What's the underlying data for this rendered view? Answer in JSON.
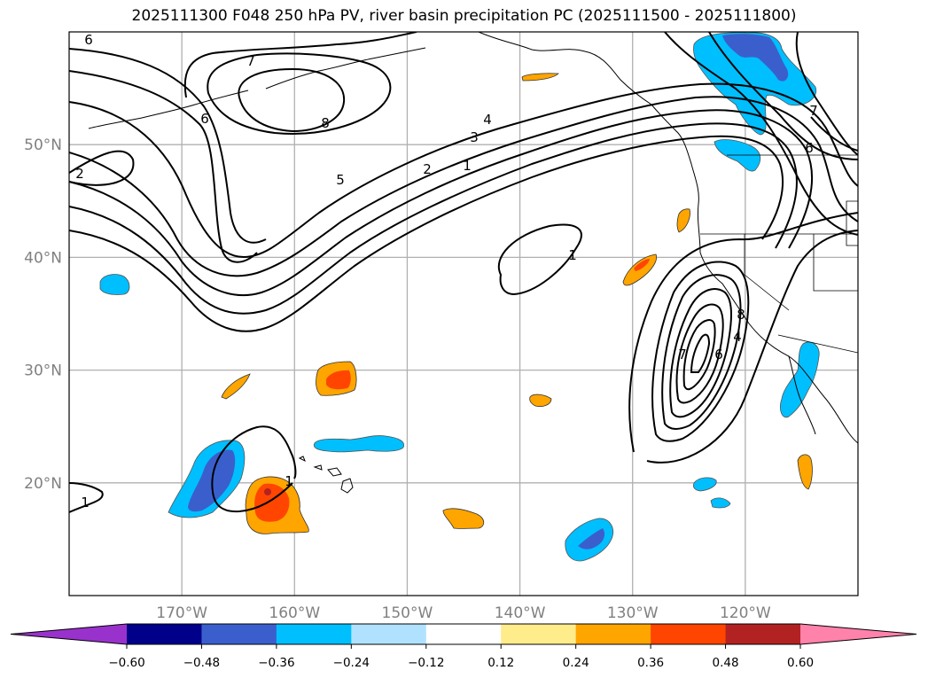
{
  "title": "2025111300 F048 250 hPa PV, river basin precipitation PC (2025111500 - 2025111800)",
  "map": {
    "projection": "PlateCarree",
    "extent_lon": [
      -180,
      -110
    ],
    "extent_lat": [
      10,
      60
    ],
    "grid": true,
    "grid_color": "#b0b0b0",
    "lon_ticks": [
      {
        "lon": -170,
        "label": "170°W"
      },
      {
        "lon": -160,
        "label": "160°W"
      },
      {
        "lon": -150,
        "label": "150°W"
      },
      {
        "lon": -140,
        "label": "140°W"
      },
      {
        "lon": -130,
        "label": "130°W"
      },
      {
        "lon": -120,
        "label": "120°W"
      }
    ],
    "lat_ticks": [
      {
        "lat": 50,
        "label": "50°N"
      },
      {
        "lat": 40,
        "label": "40°N"
      },
      {
        "lat": 30,
        "label": "30°N"
      },
      {
        "lat": 20,
        "label": "20°N"
      }
    ]
  },
  "chart_data": {
    "type": "heatmap",
    "title": "2025111300 F048 250 hPa PV, river basin precipitation PC (2025111500 - 2025111800)",
    "xlabel": "",
    "ylabel": "",
    "filled_field": "river basin precipitation PC",
    "contour_field": "250 hPa PV",
    "contour_levels": [
      1,
      2,
      3,
      4,
      5,
      6,
      7,
      8
    ],
    "contour_labels_visible": [
      "6",
      "7",
      "8",
      "6",
      "2",
      "5",
      "4",
      "3",
      "2",
      "1",
      "1",
      "7",
      "6",
      "4",
      "8",
      "1",
      "6",
      "7"
    ],
    "colorbar": {
      "orientation": "horizontal",
      "extend": "both",
      "boundaries": [
        -0.6,
        -0.48,
        -0.36,
        -0.24,
        -0.12,
        0.12,
        0.24,
        0.36,
        0.48,
        0.6
      ],
      "tick_labels": [
        "−0.60",
        "−0.48",
        "−0.36",
        "−0.24",
        "−0.12",
        "0.12",
        "0.24",
        "0.36",
        "0.48",
        "0.60"
      ],
      "colors": [
        "#9932cc",
        "#00008b",
        "#3a5fcd",
        "#00bfff",
        "#b0e2ff",
        "#ffffff",
        "#ffec8b",
        "#ffa500",
        "#ff4500",
        "#b22222",
        "#ff82ab"
      ]
    },
    "precip_features": [
      {
        "region": "Gulf of Alaska / BC coast",
        "sign": "negative",
        "max_category": "-0.48 to -0.36"
      },
      {
        "region": "Washington coast",
        "sign": "negative",
        "max_category": "-0.36 to -0.24"
      },
      {
        "region": "Baja California",
        "sign": "negative",
        "max_category": "-0.36 to -0.24"
      },
      {
        "region": "West of Hawaii (~167W,21N)",
        "sign": "negative",
        "max_category": "-0.48 to -0.36"
      },
      {
        "region": "Northeast of Hawaii (~152W,23N)",
        "sign": "negative",
        "max_category": "-0.36 to -0.24"
      },
      {
        "region": "South-central Pacific (~137W,15N)",
        "sign": "negative",
        "max_category": "-0.48 to -0.36"
      },
      {
        "region": "West of 170W (~174W,38N)",
        "sign": "negative",
        "max_category": "-0.36 to -0.24"
      },
      {
        "region": "Near 162W,19N",
        "sign": "positive",
        "max_category": "0.48 to 0.60"
      },
      {
        "region": "Near 158W,29N",
        "sign": "positive",
        "max_category": "0.36 to 0.48"
      },
      {
        "region": "Near 130W,39N",
        "sign": "positive",
        "max_category": "0.36 to 0.48"
      },
      {
        "region": "Near 166W,28N",
        "sign": "positive",
        "max_category": "0.24 to 0.36"
      },
      {
        "region": "Near 140W,55N",
        "sign": "positive",
        "max_category": "0.24 to 0.36"
      },
      {
        "region": "Near 126W,43N",
        "sign": "positive",
        "max_category": "0.24 to 0.36"
      },
      {
        "region": "Near 139W,27N",
        "sign": "positive",
        "max_category": "0.24 to 0.36"
      },
      {
        "region": "Near 146W,17N",
        "sign": "positive",
        "max_category": "0.24 to 0.36"
      },
      {
        "region": "Near 115W,19N",
        "sign": "positive",
        "max_category": "0.24 to 0.36"
      }
    ]
  }
}
